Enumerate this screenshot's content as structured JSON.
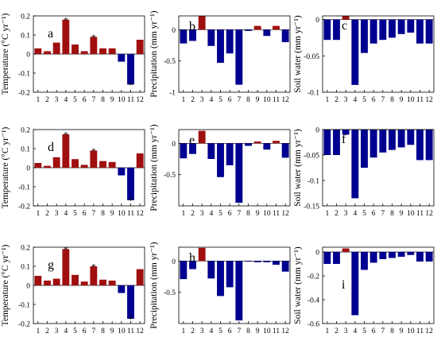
{
  "colors": {
    "positive": "#a00f0f",
    "negative": "#000090",
    "axis": "#000000"
  },
  "chart_data": [
    {
      "id": "a",
      "type": "bar",
      "letter": "a",
      "ylabel": "Temperature (°C yr⁻¹)",
      "categories": [
        "1",
        "2",
        "3",
        "4",
        "5",
        "6",
        "7",
        "8",
        "9",
        "10",
        "11",
        "12"
      ],
      "values": [
        0.03,
        0.015,
        0.06,
        0.18,
        0.05,
        0.015,
        0.09,
        0.03,
        0.03,
        -0.04,
        -0.16,
        0.075
      ],
      "starred": [
        "4",
        "7",
        "11"
      ],
      "ylim": [
        -0.2,
        0.2
      ],
      "yticks": [
        -0.2,
        -0.1,
        0,
        0.1,
        0.2
      ],
      "ytick_labels": [
        "-0.2",
        "-0.1",
        "0",
        "0.1",
        "0.2"
      ]
    },
    {
      "id": "b",
      "type": "bar",
      "letter": "b",
      "ylabel": "Precipitation (mm yr⁻¹)",
      "categories": [
        "1",
        "2",
        "3",
        "4",
        "5",
        "6",
        "7",
        "8",
        "9",
        "10",
        "11",
        "12"
      ],
      "values": [
        -0.22,
        -0.18,
        0.22,
        -0.26,
        -0.53,
        -0.38,
        -0.88,
        -0.02,
        0.06,
        -0.1,
        0.06,
        -0.2
      ],
      "ylim": [
        -1,
        0.22
      ],
      "yticks": [
        -1,
        -0.5,
        0
      ],
      "ytick_labels": [
        "-1",
        "-0.5",
        "0"
      ]
    },
    {
      "id": "c",
      "type": "bar",
      "letter": "c",
      "ylabel": "Soil water (mm yr⁻¹)",
      "categories": [
        "1",
        "2",
        "3",
        "4",
        "5",
        "6",
        "7",
        "8",
        "9",
        "10",
        "11",
        "12"
      ],
      "values": [
        -0.028,
        -0.028,
        0.005,
        -0.09,
        -0.046,
        -0.033,
        -0.028,
        -0.025,
        -0.02,
        -0.018,
        -0.033,
        -0.033
      ],
      "ylim": [
        -0.1,
        0.005
      ],
      "yticks": [
        -0.1,
        -0.05,
        0
      ],
      "ytick_labels": [
        "-0.1",
        "-0.05",
        "0"
      ]
    },
    {
      "id": "d",
      "type": "bar",
      "letter": "d",
      "ylabel": "Temperature (°C yr⁻¹)",
      "categories": [
        "1",
        "2",
        "3",
        "4",
        "5",
        "6",
        "7",
        "8",
        "9",
        "10",
        "11",
        "12"
      ],
      "values": [
        0.025,
        0.01,
        0.055,
        0.175,
        0.045,
        0.015,
        0.09,
        0.035,
        0.03,
        -0.04,
        -0.17,
        0.075
      ],
      "starred": [
        "4",
        "7",
        "11"
      ],
      "ylim": [
        -0.2,
        0.2
      ],
      "yticks": [
        -0.2,
        -0.1,
        0,
        0.1,
        0.2
      ],
      "ytick_labels": [
        "-0.2",
        "-0.1",
        "0",
        "0.1",
        "0.2"
      ]
    },
    {
      "id": "e",
      "type": "bar",
      "letter": "e",
      "ylabel": "Precipitation (mm yr⁻¹)",
      "categories": [
        "1",
        "2",
        "3",
        "4",
        "5",
        "6",
        "7",
        "8",
        "9",
        "10",
        "11",
        "12"
      ],
      "values": [
        -0.24,
        -0.17,
        0.2,
        -0.25,
        -0.54,
        -0.35,
        -0.95,
        -0.04,
        0.03,
        -0.1,
        0.04,
        -0.23
      ],
      "ylim": [
        -1,
        0.22
      ],
      "yticks": [
        -0.5,
        0
      ],
      "ytick_labels": [
        "-0.5",
        "0"
      ]
    },
    {
      "id": "f",
      "type": "bar",
      "letter": "f",
      "ylabel": "Soil water (mm yr⁻¹)",
      "categories": [
        "1",
        "2",
        "3",
        "4",
        "5",
        "6",
        "7",
        "8",
        "9",
        "10",
        "11",
        "12"
      ],
      "values": [
        -0.05,
        -0.05,
        -0.01,
        -0.135,
        -0.075,
        -0.055,
        -0.045,
        -0.04,
        -0.035,
        -0.03,
        -0.06,
        -0.06
      ],
      "ylim": [
        -0.15,
        0.0
      ],
      "yticks": [
        -0.15,
        -0.1,
        -0.05,
        0
      ],
      "ytick_labels": [
        "-0.15",
        "-0.1",
        "-0.05",
        "0"
      ]
    },
    {
      "id": "g",
      "type": "bar",
      "letter": "g",
      "ylabel": "Temperature (°C yr⁻¹)",
      "categories": [
        "1",
        "2",
        "3",
        "4",
        "5",
        "6",
        "7",
        "8",
        "9",
        "10",
        "11",
        "12"
      ],
      "values": [
        0.05,
        0.025,
        0.035,
        0.19,
        0.055,
        0.02,
        0.1,
        0.03,
        0.025,
        -0.04,
        -0.175,
        0.085
      ],
      "starred": [
        "4",
        "7",
        "11"
      ],
      "ylim": [
        -0.2,
        0.2
      ],
      "yticks": [
        -0.2,
        -0.1,
        0,
        0.1,
        0.2
      ],
      "ytick_labels": [
        "-0.2",
        "-0.1",
        "0",
        "0.1",
        "0.2"
      ]
    },
    {
      "id": "h",
      "type": "bar",
      "letter": "h",
      "ylabel": "Precipitation (mm yr⁻¹)",
      "categories": [
        "1",
        "2",
        "3",
        "4",
        "5",
        "6",
        "7",
        "8",
        "9",
        "10",
        "11",
        "12"
      ],
      "values": [
        -0.29,
        -0.13,
        0.21,
        -0.28,
        -0.56,
        -0.42,
        -0.95,
        -0.01,
        -0.02,
        -0.02,
        -0.06,
        -0.17
      ],
      "ylim": [
        -1,
        0.22
      ],
      "yticks": [
        -0.5,
        0
      ],
      "ytick_labels": [
        "-0.5",
        "0"
      ]
    },
    {
      "id": "i",
      "type": "bar",
      "letter": "i",
      "ylabel": "Soil water (mm yr⁻¹)",
      "categories": [
        "1",
        "2",
        "3",
        "4",
        "5",
        "6",
        "7",
        "8",
        "9",
        "10",
        "11",
        "12"
      ],
      "values": [
        -0.1,
        -0.1,
        0.03,
        -0.53,
        -0.15,
        -0.09,
        -0.06,
        -0.05,
        -0.04,
        -0.025,
        -0.08,
        -0.08
      ],
      "ylim": [
        -0.6,
        0.04
      ],
      "yticks": [
        -0.6,
        -0.4,
        -0.2,
        0
      ],
      "ytick_labels": [
        "-0.6",
        "-0.4",
        "-0.2",
        "0"
      ]
    }
  ]
}
